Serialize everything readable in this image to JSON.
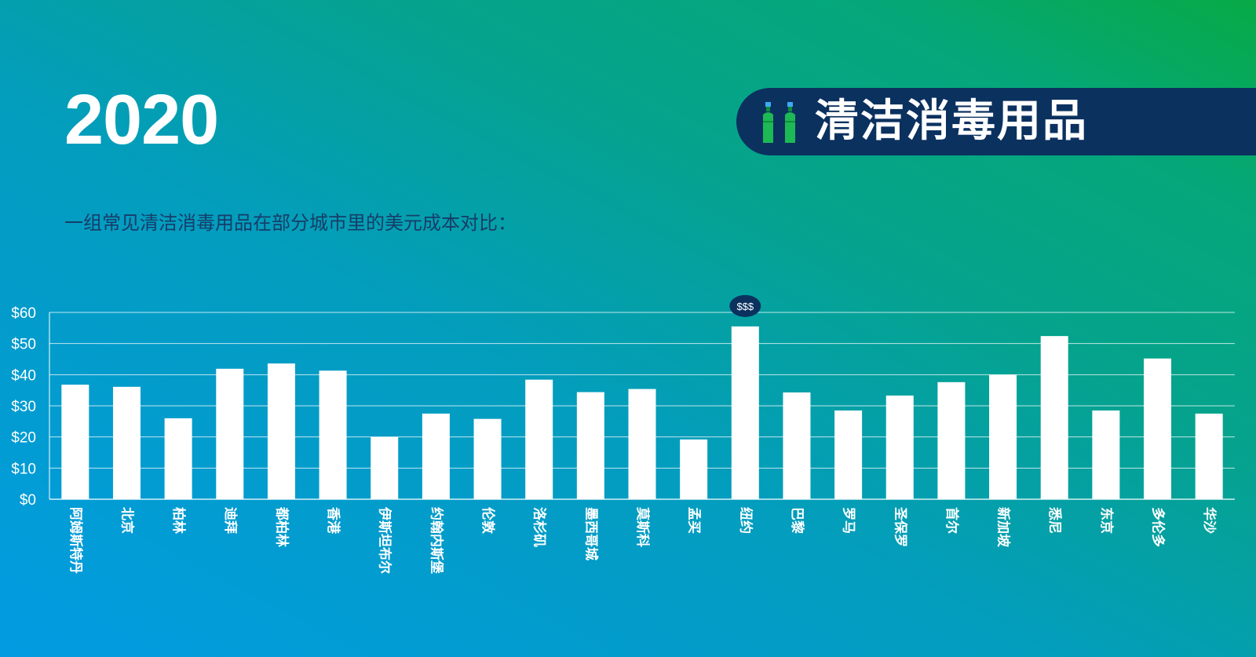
{
  "header": {
    "year": "2020",
    "banner_title": "清洁消毒用品",
    "banner_icon": "cleaning-bottles-icon",
    "subtitle": "一组常见清洁消毒用品在部分城市里的美元成本对比："
  },
  "colors": {
    "banner_bg": "#0b315f",
    "bar": "#ffffff",
    "axis_text": "#ffffff",
    "subtitle": "#163d68"
  },
  "chart_data": {
    "type": "bar",
    "categories": [
      "阿姆斯特丹",
      "北京",
      "柏林",
      "迪拜",
      "都柏林",
      "香港",
      "伊斯坦布尔",
      "约翰内斯堡",
      "伦敦",
      "洛杉矶",
      "墨西哥城",
      "莫斯科",
      "孟买",
      "纽约",
      "巴黎",
      "罗马",
      "圣保罗",
      "首尔",
      "新加坡",
      "悉尼",
      "东京",
      "多伦多",
      "华沙"
    ],
    "values": [
      36.8,
      36.1,
      26.0,
      41.9,
      43.6,
      41.3,
      20.0,
      27.5,
      25.8,
      38.4,
      34.4,
      35.4,
      19.2,
      55.5,
      34.3,
      28.5,
      33.3,
      37.6,
      40.0,
      52.4,
      28.5,
      45.2,
      27.5
    ],
    "y_ticks": [
      "$0",
      "$10",
      "$20",
      "$30",
      "$40",
      "$50",
      "$60"
    ],
    "ylim": [
      0,
      60
    ],
    "grid": true,
    "highlight": {
      "category": "纽约",
      "label": "$$$"
    },
    "title": "",
    "xlabel": "",
    "ylabel": ""
  }
}
